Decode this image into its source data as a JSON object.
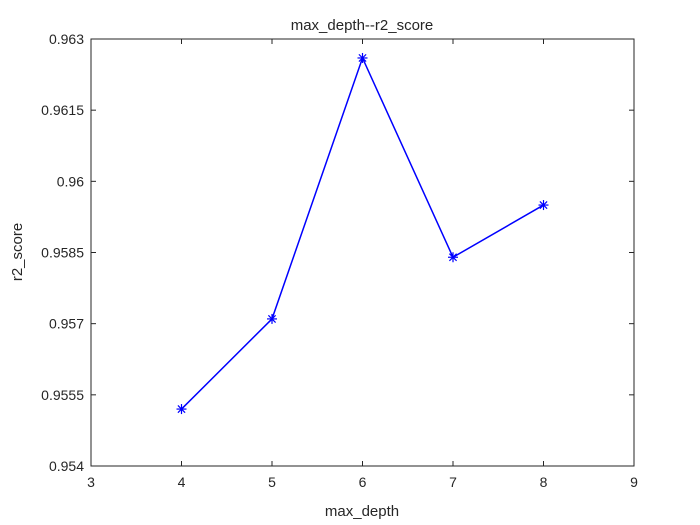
{
  "chart_data": {
    "type": "line",
    "title": "max_depth--r2_score",
    "xlabel": "max_depth",
    "ylabel": "r2_score",
    "xlim": [
      3,
      9
    ],
    "ylim": [
      0.954,
      0.963
    ],
    "x_ticks": [
      3,
      4,
      5,
      6,
      7,
      8,
      9
    ],
    "y_ticks": [
      0.954,
      0.9555,
      0.957,
      0.9585,
      0.96,
      0.9615,
      0.963
    ],
    "x_tick_labels": [
      "3",
      "4",
      "5",
      "6",
      "7",
      "8",
      "9"
    ],
    "y_tick_labels": [
      "0.954",
      "0.9555",
      "0.957",
      "0.9585",
      "0.96",
      "0.9615",
      "0.963"
    ],
    "grid": false,
    "box": true,
    "series": [
      {
        "x": [
          4,
          5,
          6,
          7,
          8
        ],
        "y": [
          0.9552,
          0.9571,
          0.9626,
          0.9584,
          0.9595
        ],
        "color": "#0000ff",
        "marker": "asterisk"
      }
    ]
  }
}
